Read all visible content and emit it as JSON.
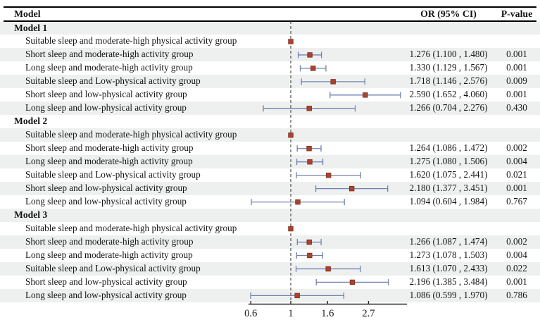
{
  "header": {
    "model": "Model",
    "or": "OR (95% CI)",
    "p": "P-value"
  },
  "axis": {
    "tick_labels": [
      "0.6",
      "1",
      "1.6",
      "2.7"
    ],
    "tick_values": [
      0.6,
      1,
      1.6,
      2.7
    ],
    "ref_value": 1
  },
  "colors": {
    "marker": "#ab422c",
    "marker_edge": "#7e2d1c",
    "ci_line": "#7282b2",
    "stripe": "#edf0ef",
    "rule": "#000000",
    "ref_dash": "#3c3c3c",
    "axis_line": "#2a2a2a",
    "text": "#141414"
  },
  "chart_data": {
    "type": "forest",
    "xscale": "log",
    "xticks": [
      0.6,
      1,
      1.6,
      2.7
    ],
    "ref_line": 1,
    "or_header": "OR (95% CI)",
    "p_header": "P-value",
    "groups": [
      {
        "label": "Model 1",
        "rows": [
          {
            "label": "Suitable sleep and moderate-high physical activity group",
            "ref": true,
            "or": 1
          },
          {
            "label": "Short sleep and moderate-high activity group",
            "or": 1.276,
            "lo": 1.1,
            "hi": 1.48,
            "or_text": "1.276 (1.100 , 1.480)",
            "p": "0.001"
          },
          {
            "label": "Long sleep and moderate-high activity group",
            "or": 1.33,
            "lo": 1.129,
            "hi": 1.567,
            "or_text": "1.330 (1.129 , 1.567)",
            "p": "0.001"
          },
          {
            "label": "Suitable sleep and Low-physical activity group",
            "or": 1.718,
            "lo": 1.146,
            "hi": 2.576,
            "or_text": "1.718 (1.146 , 2.576)",
            "p": "0.009"
          },
          {
            "label": "Short sleep and low-physical activity group",
            "or": 2.59,
            "lo": 1.652,
            "hi": 4.06,
            "or_text": "2.590 (1.652 , 4.060)",
            "p": "0.001"
          },
          {
            "label": "Long sleep and low-physical activity group",
            "or": 1.266,
            "lo": 0.704,
            "hi": 2.276,
            "or_text": "1.266 (0.704 , 2.276)",
            "p": "0.430"
          }
        ]
      },
      {
        "label": "Model 2",
        "rows": [
          {
            "label": "Suitable sleep and moderate-high physical activity group",
            "ref": true,
            "or": 1
          },
          {
            "label": "Short sleep and moderate-high activity group",
            "or": 1.264,
            "lo": 1.086,
            "hi": 1.472,
            "or_text": "1.264 (1.086 , 1.472)",
            "p": "0.002"
          },
          {
            "label": "Long sleep and moderate-high activity group",
            "or": 1.275,
            "lo": 1.08,
            "hi": 1.506,
            "or_text": "1.275 (1.080 , 1.506)",
            "p": "0.004"
          },
          {
            "label": "Suitable sleep and Low-physical activity group",
            "or": 1.62,
            "lo": 1.075,
            "hi": 2.441,
            "or_text": "1.620 (1.075 , 2.441)",
            "p": "0.021"
          },
          {
            "label": "Short sleep and low-physical activity group",
            "or": 2.18,
            "lo": 1.377,
            "hi": 3.451,
            "or_text": "2.180 (1.377 , 3.451)",
            "p": "0.001"
          },
          {
            "label": "Long sleep and low-physical activity group",
            "or": 1.094,
            "lo": 0.604,
            "hi": 1.984,
            "or_text": "1.094 (0.604 , 1.984)",
            "p": "0.767"
          }
        ]
      },
      {
        "label": "Model 3",
        "rows": [
          {
            "label": "Suitable sleep and moderate-high physical activity group",
            "ref": true,
            "or": 1
          },
          {
            "label": "Short sleep and moderate-high activity group",
            "or": 1.266,
            "lo": 1.087,
            "hi": 1.474,
            "or_text": "1.266 (1.087 , 1.474)",
            "p": "0.002"
          },
          {
            "label": "Long sleep and moderate-high activity group",
            "or": 1.273,
            "lo": 1.078,
            "hi": 1.503,
            "or_text": "1.273 (1.078 , 1.503)",
            "p": "0.004"
          },
          {
            "label": "Suitable sleep and Low-physical activity group",
            "or": 1.613,
            "lo": 1.07,
            "hi": 2.433,
            "or_text": "1.613 (1.070 , 2.433)",
            "p": "0.022"
          },
          {
            "label": "Short sleep and low-physical activity group",
            "or": 2.196,
            "lo": 1.385,
            "hi": 3.484,
            "or_text": "2.196 (1.385 , 3.484)",
            "p": "0.001"
          },
          {
            "label": "Long sleep and low-physical activity group",
            "or": 1.086,
            "lo": 0.599,
            "hi": 1.97,
            "or_text": "1.086 (0.599 , 1.970)",
            "p": "0.786"
          }
        ]
      }
    ]
  }
}
